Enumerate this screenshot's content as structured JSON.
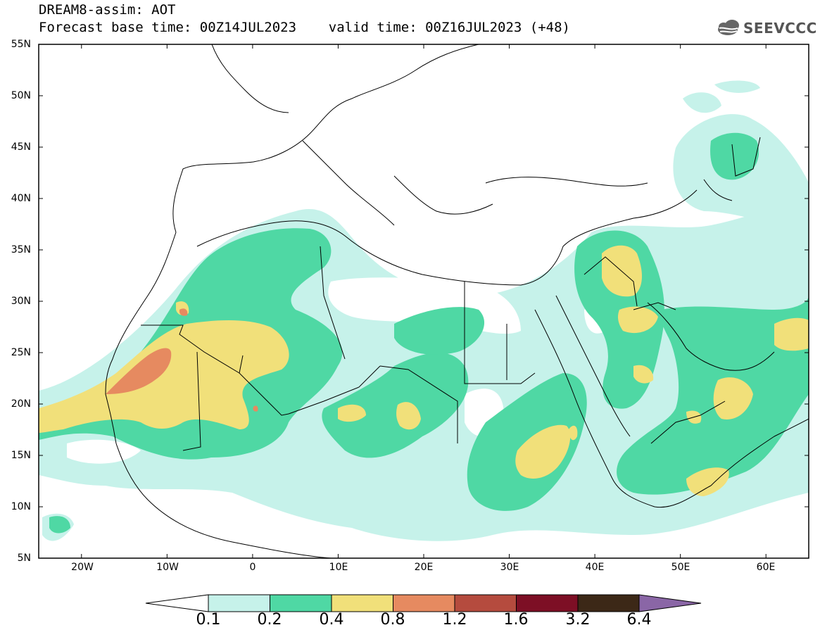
{
  "header": {
    "title_line1": "DREAM8-assim: AOT",
    "title_line2": "Forecast base time: 00Z14JUL2023    valid time: 00Z16JUL2023 (+48)",
    "logo_text": "SEEVCCC",
    "logo_icon": "cloud-logo-icon"
  },
  "map": {
    "lat_labels": [
      "55N",
      "50N",
      "45N",
      "40N",
      "35N",
      "30N",
      "25N",
      "20N",
      "15N",
      "10N",
      "5N"
    ],
    "lon_labels": [
      "20W",
      "10W",
      "0",
      "10E",
      "20E",
      "30E",
      "40E",
      "50E",
      "60E"
    ],
    "extent": {
      "lon": [
        -25,
        65
      ],
      "lat": [
        5,
        55
      ]
    }
  },
  "colorbar": {
    "labels": [
      "0.1",
      "0.2",
      "0.4",
      "0.8",
      "1.2",
      "1.6",
      "3.2",
      "6.4"
    ],
    "colors": [
      "#c6f2ea",
      "#4fd8a4",
      "#f1e07a",
      "#e68a60",
      "#b54b3e",
      "#7d0f25",
      "#3c2817",
      "#8a66a6"
    ]
  }
}
